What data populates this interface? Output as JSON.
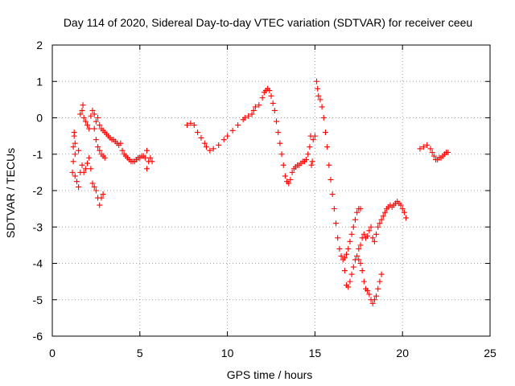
{
  "chart_data": {
    "type": "scatter",
    "title": "Day 114 of 2020, Sidereal Day-to-day VTEC variation (SDTVAR) for receiver ceeu",
    "xlabel": "GPS time / hours",
    "ylabel": "SDTVAR / TECUs",
    "xlim": [
      0,
      25
    ],
    "ylim": [
      -6,
      2
    ],
    "xticks": [
      "0",
      "5",
      "10",
      "15",
      "20",
      "25"
    ],
    "yticks": [
      "2",
      "1",
      "0",
      "-1",
      "-2",
      "-3",
      "-4",
      "-5",
      "-6"
    ],
    "grid": true,
    "marker": "plus",
    "color": "#ff0000",
    "series": [
      {
        "points": [
          [
            1.15,
            -1.5
          ],
          [
            1.2,
            -1.2
          ],
          [
            1.2,
            -0.8
          ],
          [
            1.25,
            -0.5
          ],
          [
            1.25,
            -0.4
          ],
          [
            1.3,
            -0.7
          ],
          [
            1.3,
            -1.0
          ],
          [
            1.3,
            -1.6
          ],
          [
            1.4,
            -1.75
          ],
          [
            1.5,
            -0.9
          ],
          [
            1.5,
            -1.9
          ],
          [
            1.6,
            0.1
          ],
          [
            1.6,
            -1.5
          ],
          [
            1.7,
            0.2
          ],
          [
            1.7,
            -1.3
          ],
          [
            1.75,
            0.35
          ],
          [
            1.8,
            0.0
          ],
          [
            1.8,
            -1.5
          ],
          [
            1.9,
            -0.1
          ],
          [
            1.9,
            -1.4
          ],
          [
            2.0,
            -0.2
          ],
          [
            2.0,
            -1.25
          ],
          [
            2.1,
            -0.3
          ],
          [
            2.1,
            -1.1
          ],
          [
            2.2,
            0.05
          ],
          [
            2.2,
            -1.4
          ],
          [
            2.3,
            0.2
          ],
          [
            2.3,
            -1.8
          ],
          [
            2.4,
            0.1
          ],
          [
            2.4,
            -0.3
          ],
          [
            2.4,
            -1.9
          ],
          [
            2.5,
            -0.1
          ],
          [
            2.5,
            -0.6
          ],
          [
            2.5,
            -2.0
          ],
          [
            2.6,
            0.0
          ],
          [
            2.6,
            -0.8
          ],
          [
            2.6,
            -2.2
          ],
          [
            2.7,
            -0.2
          ],
          [
            2.7,
            -0.9
          ],
          [
            2.7,
            -2.4
          ],
          [
            2.8,
            -0.3
          ],
          [
            2.8,
            -1.0
          ],
          [
            2.8,
            -2.2
          ],
          [
            2.9,
            -0.35
          ],
          [
            2.9,
            -1.05
          ],
          [
            2.9,
            -2.1
          ],
          [
            3.0,
            -0.4
          ],
          [
            3.0,
            -1.1
          ],
          [
            3.1,
            -0.45
          ],
          [
            3.2,
            -0.5
          ],
          [
            3.3,
            -0.55
          ],
          [
            3.4,
            -0.6
          ],
          [
            3.5,
            -0.6
          ],
          [
            3.6,
            -0.65
          ],
          [
            3.7,
            -0.7
          ],
          [
            3.8,
            -0.75
          ],
          [
            3.9,
            -0.7
          ],
          [
            4.0,
            -0.9
          ],
          [
            4.1,
            -1.0
          ],
          [
            4.2,
            -1.05
          ],
          [
            4.3,
            -1.1
          ],
          [
            4.4,
            -1.15
          ],
          [
            4.5,
            -1.2
          ],
          [
            4.6,
            -1.2
          ],
          [
            4.7,
            -1.2
          ],
          [
            4.8,
            -1.15
          ],
          [
            4.9,
            -1.1
          ],
          [
            5.0,
            -1.1
          ],
          [
            5.1,
            -1.05
          ],
          [
            5.2,
            -1.05
          ],
          [
            5.3,
            -1.1
          ],
          [
            5.4,
            -0.9
          ],
          [
            5.4,
            -1.4
          ],
          [
            5.5,
            -1.2
          ],
          [
            5.6,
            -1.1
          ],
          [
            5.7,
            -1.2
          ]
        ]
      },
      {
        "points": [
          [
            7.7,
            -0.2
          ],
          [
            7.9,
            -0.15
          ],
          [
            8.1,
            -0.2
          ],
          [
            8.3,
            -0.4
          ],
          [
            8.5,
            -0.55
          ],
          [
            8.7,
            -0.7
          ],
          [
            8.8,
            -0.8
          ],
          [
            9.0,
            -0.9
          ],
          [
            9.2,
            -0.85
          ],
          [
            9.5,
            -0.75
          ],
          [
            9.8,
            -0.6
          ],
          [
            10.0,
            -0.5
          ],
          [
            10.3,
            -0.35
          ],
          [
            10.6,
            -0.2
          ],
          [
            10.9,
            -0.05
          ],
          [
            11.0,
            0.0
          ],
          [
            11.2,
            0.05
          ],
          [
            11.4,
            0.1
          ],
          [
            11.5,
            0.2
          ],
          [
            11.6,
            0.3
          ],
          [
            11.8,
            0.35
          ],
          [
            12.0,
            0.55
          ],
          [
            12.1,
            0.7
          ],
          [
            12.2,
            0.75
          ],
          [
            12.3,
            0.8
          ],
          [
            12.4,
            0.75
          ],
          [
            12.5,
            0.6
          ],
          [
            12.6,
            0.4
          ],
          [
            12.7,
            0.2
          ],
          [
            12.8,
            -0.1
          ],
          [
            12.9,
            -0.4
          ],
          [
            13.0,
            -0.7
          ],
          [
            13.1,
            -1.0
          ],
          [
            13.2,
            -1.3
          ],
          [
            13.3,
            -1.6
          ],
          [
            13.4,
            -1.75
          ],
          [
            13.5,
            -1.8
          ],
          [
            13.6,
            -1.7
          ],
          [
            13.7,
            -1.5
          ],
          [
            13.8,
            -1.4
          ],
          [
            13.9,
            -1.35
          ],
          [
            14.0,
            -1.3
          ],
          [
            14.1,
            -1.3
          ],
          [
            14.2,
            -1.25
          ],
          [
            14.3,
            -1.2
          ],
          [
            14.4,
            -1.2
          ],
          [
            14.5,
            -1.15
          ],
          [
            14.6,
            -1.0
          ],
          [
            14.7,
            -0.8
          ],
          [
            14.75,
            -0.5
          ],
          [
            14.8,
            -1.3
          ],
          [
            14.85,
            -1.2
          ],
          [
            14.9,
            -0.6
          ],
          [
            15.0,
            -0.5
          ]
        ]
      },
      {
        "points": [
          [
            15.1,
            1.0
          ],
          [
            15.15,
            0.8
          ],
          [
            15.2,
            0.6
          ],
          [
            15.3,
            0.5
          ],
          [
            15.4,
            0.3
          ],
          [
            15.5,
            0.0
          ],
          [
            15.6,
            -0.4
          ],
          [
            15.7,
            -0.8
          ],
          [
            15.8,
            -1.3
          ],
          [
            15.9,
            -1.7
          ],
          [
            16.0,
            -2.1
          ],
          [
            16.1,
            -2.5
          ],
          [
            16.2,
            -2.9
          ],
          [
            16.3,
            -3.3
          ],
          [
            16.4,
            -3.6
          ],
          [
            16.5,
            -3.8
          ],
          [
            16.6,
            -3.9
          ],
          [
            16.7,
            -3.85
          ],
          [
            16.8,
            -3.75
          ],
          [
            16.9,
            -3.6
          ],
          [
            17.0,
            -3.4
          ],
          [
            17.1,
            -3.2
          ],
          [
            17.2,
            -3.0
          ],
          [
            17.3,
            -2.8
          ],
          [
            17.4,
            -2.6
          ],
          [
            17.5,
            -2.5
          ],
          [
            17.6,
            -2.5
          ],
          [
            16.7,
            -4.2
          ],
          [
            16.8,
            -4.6
          ],
          [
            16.9,
            -4.65
          ],
          [
            17.0,
            -4.5
          ],
          [
            17.1,
            -4.3
          ],
          [
            17.2,
            -4.1
          ],
          [
            17.3,
            -3.9
          ],
          [
            17.4,
            -3.8
          ],
          [
            17.5,
            -3.6
          ],
          [
            17.6,
            -3.5
          ],
          [
            17.7,
            -3.3
          ],
          [
            17.8,
            -3.2
          ],
          [
            17.9,
            -3.3
          ],
          [
            18.0,
            -3.25
          ],
          [
            18.1,
            -3.1
          ],
          [
            18.2,
            -3.0
          ],
          [
            18.3,
            -3.3
          ],
          [
            18.4,
            -3.4
          ],
          [
            18.5,
            -3.2
          ],
          [
            18.6,
            -3.0
          ],
          [
            18.7,
            -2.9
          ],
          [
            18.8,
            -2.8
          ],
          [
            18.9,
            -2.7
          ],
          [
            19.0,
            -2.6
          ],
          [
            19.1,
            -2.5
          ],
          [
            19.2,
            -2.45
          ],
          [
            19.3,
            -2.4
          ],
          [
            19.4,
            -2.45
          ],
          [
            19.5,
            -2.4
          ],
          [
            19.6,
            -2.35
          ],
          [
            19.7,
            -2.3
          ],
          [
            19.8,
            -2.35
          ],
          [
            19.9,
            -2.4
          ],
          [
            20.0,
            -2.5
          ],
          [
            20.1,
            -2.6
          ],
          [
            20.2,
            -2.75
          ],
          [
            17.5,
            -3.9
          ],
          [
            17.6,
            -4.0
          ],
          [
            17.7,
            -4.2
          ],
          [
            17.8,
            -4.5
          ],
          [
            17.9,
            -4.7
          ],
          [
            18.0,
            -4.75
          ],
          [
            18.1,
            -4.85
          ],
          [
            18.2,
            -5.0
          ],
          [
            18.3,
            -5.1
          ],
          [
            18.4,
            -5.0
          ],
          [
            18.5,
            -4.9
          ],
          [
            18.6,
            -4.7
          ],
          [
            18.7,
            -4.5
          ],
          [
            18.8,
            -4.3
          ]
        ]
      },
      {
        "points": [
          [
            21.0,
            -0.85
          ],
          [
            21.2,
            -0.8
          ],
          [
            21.4,
            -0.75
          ],
          [
            21.6,
            -0.85
          ],
          [
            21.7,
            -0.95
          ],
          [
            21.8,
            -1.05
          ],
          [
            21.9,
            -1.15
          ],
          [
            22.0,
            -1.15
          ],
          [
            22.1,
            -1.1
          ],
          [
            22.2,
            -1.1
          ],
          [
            22.3,
            -1.05
          ],
          [
            22.4,
            -1.0
          ],
          [
            22.5,
            -0.95
          ],
          [
            22.6,
            -0.95
          ]
        ]
      }
    ]
  }
}
